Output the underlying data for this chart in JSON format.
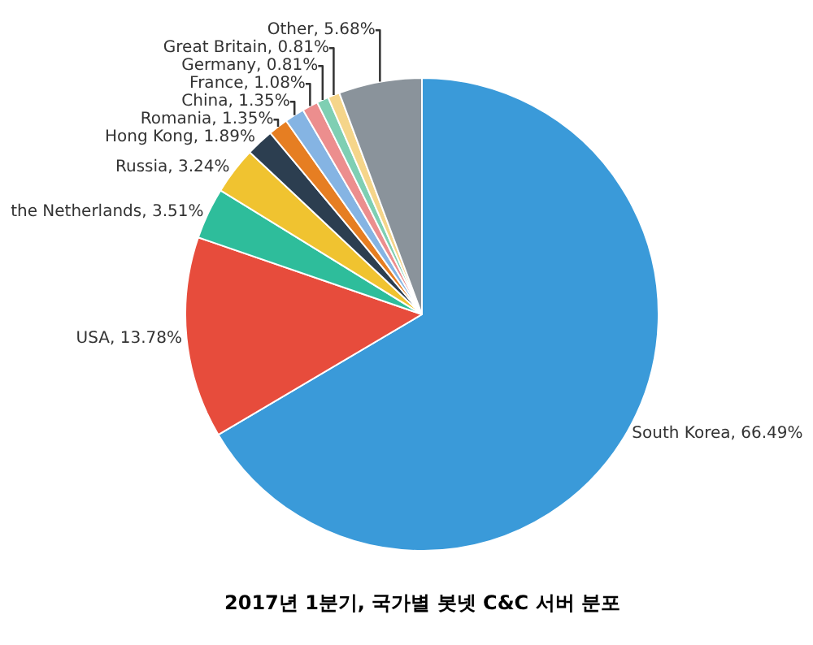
{
  "chart_data": {
    "type": "pie",
    "title": "2017년 1분기, 국가별 봇넷 C&C 서버 분포",
    "categories": [
      "South Korea, 66.49%",
      "USA, 13.78%",
      "the Netherlands, 3.51%",
      "Russia, 3.24%",
      "Hong Kong, 1.89%",
      "Romania, 1.35%",
      "China, 1.35%",
      "France, 1.08%",
      "Germany, 0.81%",
      "Great Britain, 0.81%",
      "Other, 5.68%"
    ],
    "values": [
      66.49,
      13.78,
      3.51,
      3.24,
      1.89,
      1.35,
      1.35,
      1.08,
      0.81,
      0.81,
      5.68
    ],
    "colors": [
      "#3a9ad9",
      "#e74c3c",
      "#2ebd9b",
      "#f0c330",
      "#2c3e50",
      "#e67e22",
      "#85b4e3",
      "#ec8e8e",
      "#7fcfb3",
      "#f5d58a",
      "#8a939b"
    ],
    "legend": false
  }
}
